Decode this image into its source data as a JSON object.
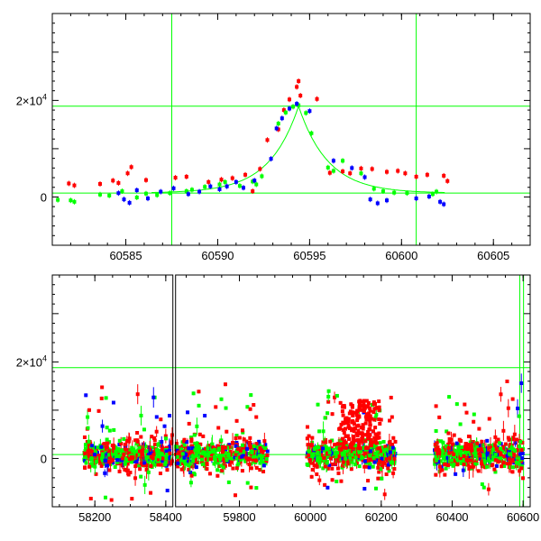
{
  "chart_data": [
    {
      "type": "scatter",
      "panel": "top",
      "title": "",
      "xlabel": "",
      "ylabel": "",
      "xlim": [
        60581,
        60607
      ],
      "ylim": [
        -10000,
        38000
      ],
      "xticks": [
        60585,
        60590,
        60595,
        60600,
        60605
      ],
      "yticks": [
        {
          "value": 0,
          "base": "0",
          "exp": ""
        },
        {
          "value": 20000,
          "base": "2×10",
          "exp": "4"
        }
      ],
      "vlines": [
        60587.5,
        60600.8
      ],
      "hlines": [
        18800,
        800
      ],
      "model": {
        "peak_time": 60594.4,
        "peak_flux": 18000,
        "baseline": 800,
        "tau": 1.6
      },
      "colors": {
        "red": "#ff0000",
        "green": "#00ff00",
        "blue": "#0000ff",
        "model": "#00ff00"
      },
      "series": [
        {
          "color": "red",
          "points": [
            [
              60581.9,
              2800
            ],
            [
              60582.2,
              2400
            ],
            [
              60583.6,
              2700
            ],
            [
              60584.3,
              3400
            ],
            [
              60584.6,
              2900
            ],
            [
              60585.1,
              4900
            ],
            [
              60585.3,
              6200
            ],
            [
              60586.1,
              3500
            ],
            [
              60587.7,
              4000
            ],
            [
              60588.3,
              4200
            ],
            [
              60589.5,
              3100
            ],
            [
              60590.2,
              3600
            ],
            [
              60590.8,
              3900
            ],
            [
              60591.5,
              4600
            ],
            [
              60591.9,
              1200
            ],
            [
              60592.3,
              5800
            ],
            [
              60592.7,
              11800
            ],
            [
              60593.3,
              14000
            ],
            [
              60593.6,
              18000
            ],
            [
              60593.9,
              20200
            ],
            [
              60594.3,
              22800
            ],
            [
              60594.4,
              24000
            ],
            [
              60594.5,
              21000
            ],
            [
              60595.4,
              20300
            ],
            [
              60596.1,
              5000
            ],
            [
              60596.8,
              5300
            ],
            [
              60597.2,
              4900
            ],
            [
              60597.8,
              5900
            ],
            [
              60598.4,
              5800
            ],
            [
              60599.2,
              5200
            ],
            [
              60599.8,
              5400
            ],
            [
              60600.2,
              4900
            ],
            [
              60600.8,
              4200
            ],
            [
              60601.4,
              4600
            ],
            [
              60602.3,
              4400
            ],
            [
              60602.5,
              3300
            ]
          ]
        },
        {
          "color": "green",
          "points": [
            [
              60581.3,
              -600
            ],
            [
              60582.0,
              -700
            ],
            [
              60582.2,
              -1000
            ],
            [
              60583.6,
              500
            ],
            [
              60584.1,
              300
            ],
            [
              60584.8,
              1200
            ],
            [
              60585.6,
              -100
            ],
            [
              60586.1,
              700
            ],
            [
              60586.7,
              400
            ],
            [
              60587.4,
              800
            ],
            [
              60588.3,
              1200
            ],
            [
              60588.6,
              1500
            ],
            [
              60589.3,
              2100
            ],
            [
              60590.1,
              2600
            ],
            [
              60590.4,
              3100
            ],
            [
              60591.2,
              2300
            ],
            [
              60591.9,
              3200
            ],
            [
              60592.1,
              2600
            ],
            [
              60592.4,
              4300
            ],
            [
              60593.3,
              15200
            ],
            [
              60593.7,
              17500
            ],
            [
              60594.1,
              18700
            ],
            [
              60594.4,
              19000
            ],
            [
              60594.8,
              17400
            ],
            [
              60595.1,
              13200
            ],
            [
              60596.0,
              6100
            ],
            [
              60596.3,
              5400
            ],
            [
              60596.8,
              7500
            ],
            [
              60597.8,
              4900
            ],
            [
              60598.5,
              1700
            ],
            [
              60599.0,
              1200
            ],
            [
              60599.6,
              900
            ],
            [
              60600.3,
              800
            ],
            [
              60601.7,
              600
            ],
            [
              60601.9,
              1100
            ]
          ]
        },
        {
          "color": "blue",
          "points": [
            [
              60584.6,
              800
            ],
            [
              60584.9,
              -500
            ],
            [
              60585.2,
              -1200
            ],
            [
              60585.6,
              1400
            ],
            [
              60586.2,
              -300
            ],
            [
              60586.9,
              1100
            ],
            [
              60587.6,
              1800
            ],
            [
              60588.4,
              600
            ],
            [
              60589.0,
              1100
            ],
            [
              60589.6,
              2200
            ],
            [
              60590.1,
              1600
            ],
            [
              60590.5,
              2200
            ],
            [
              60591.0,
              3100
            ],
            [
              60591.4,
              1900
            ],
            [
              60592.0,
              3400
            ],
            [
              60592.9,
              7900
            ],
            [
              60593.2,
              14200
            ],
            [
              60593.5,
              16300
            ],
            [
              60593.9,
              18300
            ],
            [
              60594.3,
              19300
            ],
            [
              60595.0,
              17800
            ],
            [
              60596.3,
              7500
            ],
            [
              60597.3,
              6000
            ],
            [
              60598.0,
              4100
            ],
            [
              60598.3,
              -500
            ],
            [
              60598.7,
              -1300
            ],
            [
              60599.2,
              -700
            ],
            [
              60600.8,
              -300
            ],
            [
              60601.5,
              100
            ],
            [
              60602.1,
              -1000
            ],
            [
              60602.3,
              -1500
            ]
          ]
        }
      ]
    },
    {
      "type": "scatter",
      "panel": "bottom",
      "title": "",
      "xlabel": "",
      "ylabel": "",
      "xlim": [
        58080,
        60620
      ],
      "ylim": [
        -10000,
        38000
      ],
      "xticks": [
        58200,
        58400,
        59800,
        60000,
        60200,
        60400,
        60600
      ],
      "yticks": [
        {
          "value": 0,
          "base": "0",
          "exp": ""
        },
        {
          "value": 20000,
          "base": "2×10",
          "exp": "4"
        }
      ],
      "vlines": [
        60590.6,
        60601.3
      ],
      "hlines": [
        18800,
        800
      ],
      "x_break": {
        "gap": [
          58420,
          59620
        ],
        "drawn_after": 58420
      },
      "seasons": [
        [
          58170,
          58420
        ],
        [
          59620,
          59880
        ],
        [
          59990,
          60240
        ],
        [
          60350,
          60600
        ]
      ],
      "colors": {
        "red": "#ff0000",
        "green": "#00ff00",
        "blue": "#0000ff"
      }
    }
  ]
}
